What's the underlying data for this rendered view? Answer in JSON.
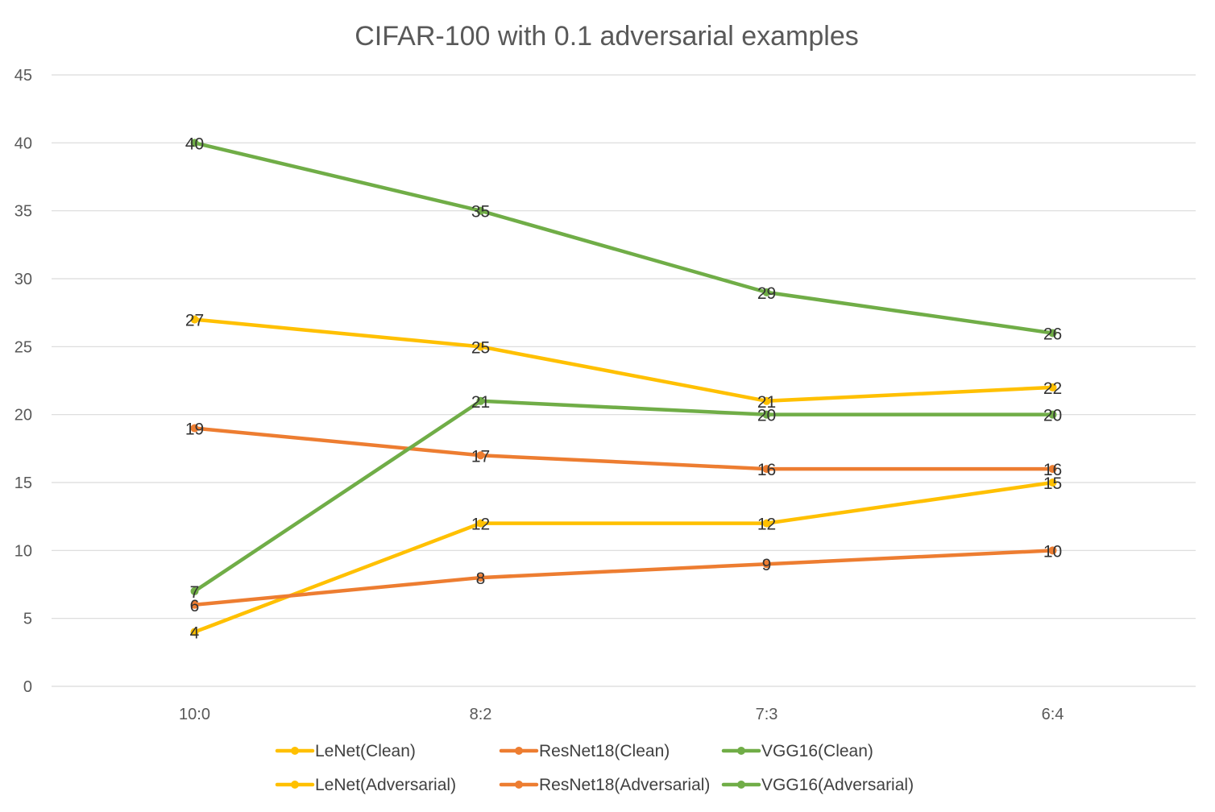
{
  "chart_data": {
    "type": "line",
    "title": "CIFAR-100 with 0.1 adversarial examples",
    "xlabel": "",
    "ylabel": "",
    "categories": [
      "10:0",
      "8:2",
      "7:3",
      "6:4"
    ],
    "ylim": [
      0,
      45
    ],
    "yticks": [
      0,
      5,
      10,
      15,
      20,
      25,
      30,
      35,
      40,
      45
    ],
    "grid": true,
    "legend_position": "bottom",
    "series": [
      {
        "name": "LeNet(Clean)",
        "color": "#FFC000",
        "values": [
          27,
          25,
          21,
          22
        ]
      },
      {
        "name": "ResNet18(Clean)",
        "color": "#ED7D31",
        "values": [
          19,
          17,
          16,
          16
        ]
      },
      {
        "name": "VGG16(Clean)",
        "color": "#70AD47",
        "values": [
          40,
          35,
          29,
          26
        ]
      },
      {
        "name": "LeNet(Adversarial)",
        "color": "#FFC000",
        "values": [
          4,
          12,
          12,
          15
        ]
      },
      {
        "name": "ResNet18(Adversarial)",
        "color": "#ED7D31",
        "values": [
          6,
          8,
          9,
          10
        ]
      },
      {
        "name": "VGG16(Adversarial)",
        "color": "#70AD47",
        "values": [
          7,
          21,
          20,
          20
        ]
      }
    ]
  }
}
